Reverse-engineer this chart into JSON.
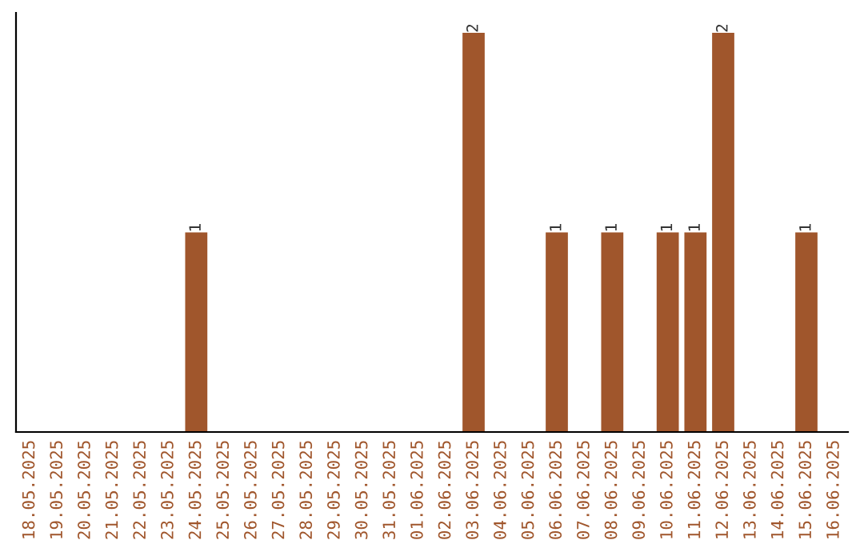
{
  "chart_data": {
    "type": "bar",
    "categories": [
      "18.05.2025",
      "19.05.2025",
      "20.05.2025",
      "21.05.2025",
      "22.05.2025",
      "23.05.2025",
      "24.05.2025",
      "25.05.2025",
      "26.05.2025",
      "27.05.2025",
      "28.05.2025",
      "29.05.2025",
      "30.05.2025",
      "31.05.2025",
      "01.06.2025",
      "02.06.2025",
      "03.06.2025",
      "04.06.2025",
      "05.06.2025",
      "06.06.2025",
      "07.06.2025",
      "08.06.2025",
      "09.06.2025",
      "10.06.2025",
      "11.06.2025",
      "12.06.2025",
      "13.06.2025",
      "14.06.2025",
      "15.06.2025",
      "16.06.2025"
    ],
    "values": [
      0,
      0,
      0,
      0,
      0,
      0,
      1,
      0,
      0,
      0,
      0,
      0,
      0,
      0,
      0,
      0,
      2,
      0,
      0,
      1,
      0,
      1,
      0,
      1,
      1,
      2,
      0,
      0,
      1,
      0
    ],
    "value_labels": [
      null,
      null,
      null,
      null,
      null,
      null,
      "1",
      null,
      null,
      null,
      null,
      null,
      null,
      null,
      null,
      null,
      "2",
      null,
      null,
      "1",
      null,
      "1",
      null,
      "1",
      "1",
      "2",
      null,
      null,
      "1",
      null
    ],
    "color": "#a0562c",
    "tick_labels": "x"
  }
}
